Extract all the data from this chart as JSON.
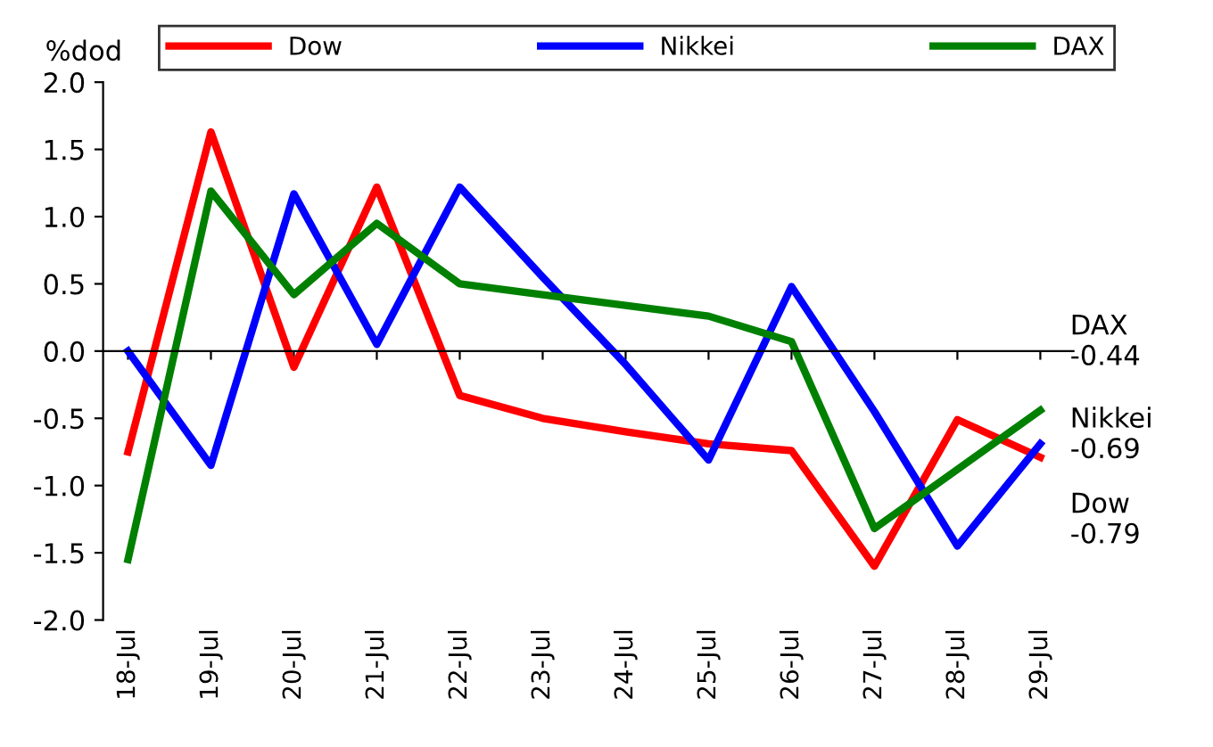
{
  "chart_data": {
    "type": "line",
    "ylabel": "%dod",
    "categories": [
      "18-Jul",
      "19-Jul",
      "20-Jul",
      "21-Jul",
      "22-Jul",
      "23-Jul",
      "24-Jul",
      "25-Jul",
      "26-Jul",
      "27-Jul",
      "28-Jul",
      "29-Jul"
    ],
    "series": [
      {
        "name": "Dow",
        "color": "#ff0000",
        "values": [
          -0.75,
          1.63,
          -0.12,
          1.22,
          -0.33,
          -0.5,
          -0.6,
          -0.69,
          -0.74,
          -1.6,
          -0.51,
          -0.79
        ]
      },
      {
        "name": "Nikkei",
        "color": "#0000ff",
        "values": [
          0.0,
          -0.85,
          1.17,
          0.05,
          1.22,
          0.55,
          -0.1,
          -0.81,
          0.48,
          -0.45,
          -1.45,
          -0.69
        ]
      },
      {
        "name": "DAX",
        "color": "#008000",
        "values": [
          -1.55,
          1.19,
          0.42,
          0.95,
          0.5,
          0.42,
          0.34,
          0.26,
          0.07,
          -1.32,
          -0.88,
          -0.44
        ]
      }
    ],
    "ylim": [
      -2.0,
      2.0
    ],
    "yticks": [
      {
        "value": 2.0,
        "label": "2.0"
      },
      {
        "value": 1.5,
        "label": "1.5"
      },
      {
        "value": 1.0,
        "label": "1.0"
      },
      {
        "value": 0.5,
        "label": "0.5"
      },
      {
        "value": 0.0,
        "label": "0.0"
      },
      {
        "value": -0.5,
        "label": "-0.5"
      },
      {
        "value": -1.0,
        "label": "-1.0"
      },
      {
        "value": -1.5,
        "label": "-1.5"
      },
      {
        "value": -2.0,
        "label": "-2.0"
      }
    ],
    "legend": "top",
    "marker": "none",
    "line_style": "solid",
    "annotations": [
      {
        "text": "DAX\n-0.44",
        "x": "29-Jul",
        "y": -0.44
      },
      {
        "text": "Nikkei\n-0.69",
        "x": "29-Jul",
        "y": -0.69
      },
      {
        "text": "Dow\n-0.79",
        "x": "29-Jul",
        "y": -0.79
      }
    ]
  }
}
